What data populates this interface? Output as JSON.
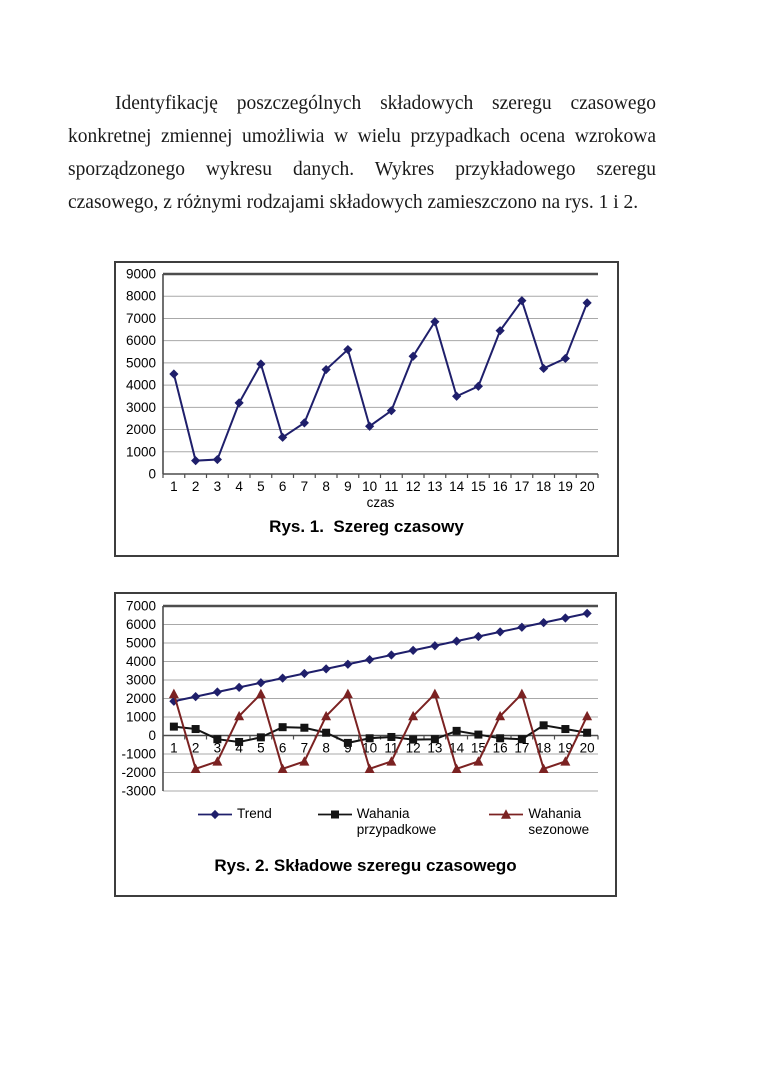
{
  "document": {
    "paragraph": "Identyfikację poszczególnych składowych szeregu czasowego konkretnej zmiennej umożliwia w wielu przypadkach ocena wzrokowa sporządzonego wykresu danych. Wykres przykładowego szeregu czasowego, z różnymi rodzajami składowych zamieszczono na rys. 1 i 2."
  },
  "colors": {
    "navy": "#1f1f6b",
    "black_series": "#141414",
    "maroon": "#7b2222",
    "gridline": "#a8a8a8",
    "axis": "#4d4d4d",
    "text": "#000000",
    "background": "#ffffff"
  },
  "chart_data": [
    {
      "type": "line",
      "title": "Rys. 1.  Szereg czasowy",
      "xlabel": "czas",
      "ylabel": "",
      "categories": [
        1,
        2,
        3,
        4,
        5,
        6,
        7,
        8,
        9,
        10,
        11,
        12,
        13,
        14,
        15,
        16,
        17,
        18,
        19,
        20
      ],
      "ylim": [
        0,
        9000
      ],
      "ytick_step": 1000,
      "grid": true,
      "legend": false,
      "series": [
        {
          "name": "szereg czasowy",
          "marker": "diamond",
          "color": "#1f1f6b",
          "values": [
            4500,
            600,
            650,
            3200,
            4950,
            1650,
            2300,
            4700,
            5600,
            2150,
            2850,
            5300,
            6850,
            3500,
            3950,
            6450,
            7800,
            4750,
            5200,
            7700
          ]
        }
      ]
    },
    {
      "type": "line",
      "title": "Rys. 2. Składowe szeregu czasowego",
      "xlabel": "",
      "ylabel": "",
      "categories": [
        1,
        2,
        3,
        4,
        5,
        6,
        7,
        8,
        9,
        10,
        11,
        12,
        13,
        14,
        15,
        16,
        17,
        18,
        19,
        20
      ],
      "ylim": [
        -3000,
        7000
      ],
      "ytick_step": 1000,
      "grid": true,
      "legend": true,
      "legend_position": "bottom",
      "series": [
        {
          "name": "Trend",
          "marker": "diamond",
          "color": "#1f1f6b",
          "values": [
            1850,
            2100,
            2350,
            2600,
            2850,
            3100,
            3350,
            3600,
            3850,
            4100,
            4350,
            4600,
            4850,
            5100,
            5350,
            5600,
            5850,
            6100,
            6350,
            6600
          ]
        },
        {
          "name": "Wahania przypadkowe",
          "marker": "square",
          "color": "#141414",
          "values": [
            480,
            350,
            -200,
            -350,
            -100,
            450,
            420,
            150,
            -400,
            -150,
            -80,
            -220,
            -200,
            250,
            50,
            -150,
            -200,
            550,
            350,
            150
          ]
        },
        {
          "name": "Wahania sezonowe",
          "marker": "triangle",
          "color": "#7b2222",
          "values": [
            2250,
            -1800,
            -1400,
            1050,
            2250,
            -1800,
            -1400,
            1050,
            2250,
            -1800,
            -1400,
            1050,
            2250,
            -1800,
            -1400,
            1050,
            2250,
            -1800,
            -1400,
            1050
          ]
        }
      ]
    }
  ]
}
